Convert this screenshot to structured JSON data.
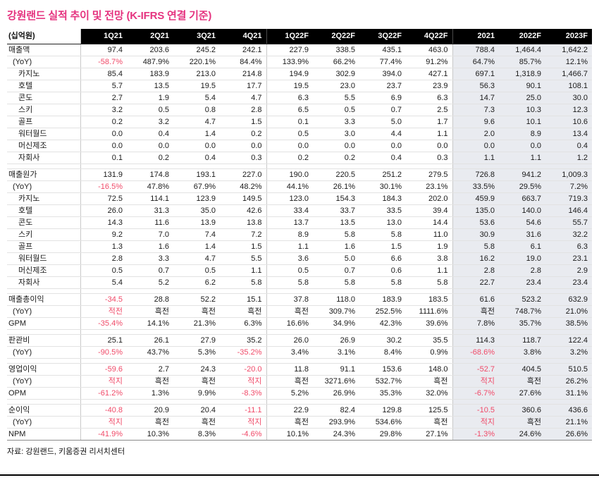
{
  "title": "강원랜드 실적 추이 및 전망 (K-IFRS 연결 기준)",
  "unit_label": "(십억원)",
  "source": "자료: 강원랜드, 키움증권 리서치센터",
  "colors": {
    "accent": "#e5337f",
    "negative": "#f04a68",
    "header_bg": "#000000",
    "annual_bg": "#e9ebf0"
  },
  "loss_terms": [
    "적전",
    "적지"
  ],
  "columns": [
    "1Q21",
    "2Q21",
    "3Q21",
    "4Q21",
    "1Q22F",
    "2Q22F",
    "3Q22F",
    "4Q22F",
    "2021",
    "2022F",
    "2023F"
  ],
  "sections": [
    {
      "rows": [
        {
          "label": "매출액",
          "indent": 0,
          "values": [
            "97.4",
            "203.6",
            "245.2",
            "242.1",
            "227.9",
            "338.5",
            "435.1",
            "463.0",
            "788.4",
            "1,464.4",
            "1,642.2"
          ]
        },
        {
          "label": "(YoY)",
          "indent": 1,
          "values": [
            "-58.7%",
            "487.9%",
            "220.1%",
            "84.4%",
            "133.9%",
            "66.2%",
            "77.4%",
            "91.2%",
            "64.7%",
            "85.7%",
            "12.1%"
          ]
        },
        {
          "label": "카지노",
          "indent": 2,
          "values": [
            "85.4",
            "183.9",
            "213.0",
            "214.8",
            "194.9",
            "302.9",
            "394.0",
            "427.1",
            "697.1",
            "1,318.9",
            "1,466.7"
          ]
        },
        {
          "label": "호텔",
          "indent": 2,
          "values": [
            "5.7",
            "13.5",
            "19.5",
            "17.7",
            "19.5",
            "23.0",
            "23.7",
            "23.9",
            "56.3",
            "90.1",
            "108.1"
          ]
        },
        {
          "label": "콘도",
          "indent": 2,
          "values": [
            "2.7",
            "1.9",
            "5.4",
            "4.7",
            "6.3",
            "5.5",
            "6.9",
            "6.3",
            "14.7",
            "25.0",
            "30.0"
          ]
        },
        {
          "label": "스키",
          "indent": 2,
          "values": [
            "3.2",
            "0.5",
            "0.8",
            "2.8",
            "6.5",
            "0.5",
            "0.7",
            "2.5",
            "7.3",
            "10.3",
            "12.3"
          ]
        },
        {
          "label": "골프",
          "indent": 2,
          "values": [
            "0.2",
            "3.2",
            "4.7",
            "1.5",
            "0.1",
            "3.3",
            "5.0",
            "1.7",
            "9.6",
            "10.1",
            "10.6"
          ]
        },
        {
          "label": "워터월드",
          "indent": 2,
          "values": [
            "0.0",
            "0.4",
            "1.4",
            "0.2",
            "0.5",
            "3.0",
            "4.4",
            "1.1",
            "2.0",
            "8.9",
            "13.4"
          ]
        },
        {
          "label": "머신제조",
          "indent": 2,
          "values": [
            "0.0",
            "0.0",
            "0.0",
            "0.0",
            "0.0",
            "0.0",
            "0.0",
            "0.0",
            "0.0",
            "0.0",
            "0.4"
          ]
        },
        {
          "label": "자회사",
          "indent": 2,
          "values": [
            "0.1",
            "0.2",
            "0.4",
            "0.3",
            "0.2",
            "0.2",
            "0.4",
            "0.3",
            "1.1",
            "1.1",
            "1.2"
          ]
        }
      ]
    },
    {
      "rows": [
        {
          "label": "매출원가",
          "indent": 0,
          "values": [
            "131.9",
            "174.8",
            "193.1",
            "227.0",
            "190.0",
            "220.5",
            "251.2",
            "279.5",
            "726.8",
            "941.2",
            "1,009.3"
          ]
        },
        {
          "label": "(YoY)",
          "indent": 1,
          "values": [
            "-16.5%",
            "47.8%",
            "67.9%",
            "48.2%",
            "44.1%",
            "26.1%",
            "30.1%",
            "23.1%",
            "33.5%",
            "29.5%",
            "7.2%"
          ]
        },
        {
          "label": "카지노",
          "indent": 2,
          "values": [
            "72.5",
            "114.1",
            "123.9",
            "149.5",
            "123.0",
            "154.3",
            "184.3",
            "202.0",
            "459.9",
            "663.7",
            "719.3"
          ]
        },
        {
          "label": "호텔",
          "indent": 2,
          "values": [
            "26.0",
            "31.3",
            "35.0",
            "42.6",
            "33.4",
            "33.7",
            "33.5",
            "39.4",
            "135.0",
            "140.0",
            "146.4"
          ]
        },
        {
          "label": "콘도",
          "indent": 2,
          "values": [
            "14.3",
            "11.6",
            "13.9",
            "13.8",
            "13.7",
            "13.5",
            "13.0",
            "14.4",
            "53.6",
            "54.6",
            "55.7"
          ]
        },
        {
          "label": "스키",
          "indent": 2,
          "values": [
            "9.2",
            "7.0",
            "7.4",
            "7.2",
            "8.9",
            "5.8",
            "5.8",
            "11.0",
            "30.9",
            "31.6",
            "32.2"
          ]
        },
        {
          "label": "골프",
          "indent": 2,
          "values": [
            "1.3",
            "1.6",
            "1.4",
            "1.5",
            "1.1",
            "1.6",
            "1.5",
            "1.9",
            "5.8",
            "6.1",
            "6.3"
          ]
        },
        {
          "label": "워터월드",
          "indent": 2,
          "values": [
            "2.8",
            "3.3",
            "4.7",
            "5.5",
            "3.6",
            "5.0",
            "6.6",
            "3.8",
            "16.2",
            "19.0",
            "23.1"
          ]
        },
        {
          "label": "머신제조",
          "indent": 2,
          "values": [
            "0.5",
            "0.7",
            "0.5",
            "1.1",
            "0.5",
            "0.7",
            "0.6",
            "1.1",
            "2.8",
            "2.8",
            "2.9"
          ]
        },
        {
          "label": "자회사",
          "indent": 2,
          "values": [
            "5.4",
            "5.2",
            "6.2",
            "5.8",
            "5.8",
            "5.8",
            "5.8",
            "5.8",
            "22.7",
            "23.4",
            "23.4"
          ]
        }
      ]
    },
    {
      "rows": [
        {
          "label": "매출총이익",
          "indent": 0,
          "values": [
            "-34.5",
            "28.8",
            "52.2",
            "15.1",
            "37.8",
            "118.0",
            "183.9",
            "183.5",
            "61.6",
            "523.2",
            "632.9"
          ]
        },
        {
          "label": "(YoY)",
          "indent": 1,
          "values": [
            "적전",
            "흑전",
            "흑전",
            "흑전",
            "흑전",
            "309.7%",
            "252.5%",
            "1111.6%",
            "흑전",
            "748.7%",
            "21.0%"
          ]
        },
        {
          "label": "GPM",
          "indent": 0,
          "values": [
            "-35.4%",
            "14.1%",
            "21.3%",
            "6.3%",
            "16.6%",
            "34.9%",
            "42.3%",
            "39.6%",
            "7.8%",
            "35.7%",
            "38.5%"
          ]
        }
      ]
    },
    {
      "rows": [
        {
          "label": "판관비",
          "indent": 0,
          "values": [
            "25.1",
            "26.1",
            "27.9",
            "35.2",
            "26.0",
            "26.9",
            "30.2",
            "35.5",
            "114.3",
            "118.7",
            "122.4"
          ]
        },
        {
          "label": "(YoY)",
          "indent": 1,
          "values": [
            "-90.5%",
            "43.7%",
            "5.3%",
            "-35.2%",
            "3.4%",
            "3.1%",
            "8.4%",
            "0.9%",
            "-68.6%",
            "3.8%",
            "3.2%"
          ]
        }
      ]
    },
    {
      "rows": [
        {
          "label": "영업이익",
          "indent": 0,
          "values": [
            "-59.6",
            "2.7",
            "24.3",
            "-20.0",
            "11.8",
            "91.1",
            "153.6",
            "148.0",
            "-52.7",
            "404.5",
            "510.5"
          ]
        },
        {
          "label": "(YoY)",
          "indent": 1,
          "values": [
            "적지",
            "흑전",
            "흑전",
            "적지",
            "흑전",
            "3271.6%",
            "532.7%",
            "흑전",
            "적지",
            "흑전",
            "26.2%"
          ]
        },
        {
          "label": "OPM",
          "indent": 0,
          "values": [
            "-61.2%",
            "1.3%",
            "9.9%",
            "-8.3%",
            "5.2%",
            "26.9%",
            "35.3%",
            "32.0%",
            "-6.7%",
            "27.6%",
            "31.1%"
          ]
        }
      ]
    },
    {
      "rows": [
        {
          "label": "순이익",
          "indent": 0,
          "values": [
            "-40.8",
            "20.9",
            "20.4",
            "-11.1",
            "22.9",
            "82.4",
            "129.8",
            "125.5",
            "-10.5",
            "360.6",
            "436.6"
          ]
        },
        {
          "label": "(YoY)",
          "indent": 1,
          "values": [
            "적지",
            "흑전",
            "흑전",
            "적지",
            "흑전",
            "293.9%",
            "534.6%",
            "흑전",
            "적지",
            "흑전",
            "21.1%"
          ]
        },
        {
          "label": "NPM",
          "indent": 0,
          "values": [
            "-41.9%",
            "10.3%",
            "8.3%",
            "-4.6%",
            "10.1%",
            "24.3%",
            "29.8%",
            "27.1%",
            "-1.3%",
            "24.6%",
            "26.6%"
          ]
        }
      ]
    }
  ]
}
